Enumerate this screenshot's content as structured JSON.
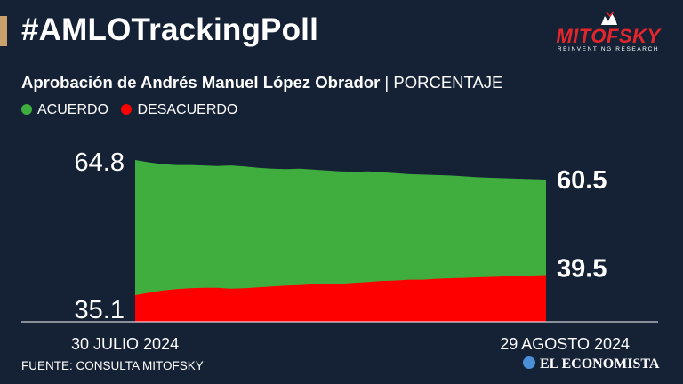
{
  "header": {
    "hashtag": "#AMLOTrackingPoll",
    "logo_word": "MITOFSKY",
    "logo_tagline": "REINVENTING RESEARCH"
  },
  "subtitle": {
    "main": "Aprobación de Andrés Manuel López Obrador",
    "separator": " | ",
    "unit": "PORCENTAJE"
  },
  "legend": {
    "acuerdo": "ACUERDO",
    "desacuerdo": "DESACUERDO"
  },
  "colors": {
    "background": "#152236",
    "acuerdo": "#3fae3f",
    "desacuerdo": "#ff0000",
    "accent": "#c9a26b",
    "logo_red": "#e3262b"
  },
  "footer": {
    "source": "FUENTE: CONSULTA MITOFSKY",
    "brand": "EL ECONOMISTA"
  },
  "chart_data": {
    "type": "area",
    "title": "Aprobación de Andrés Manuel López Obrador",
    "ylabel": "PORCENTAJE",
    "xlabel": "",
    "x_start_label": "30 JULIO 2024",
    "x_end_label": "29 AGOSTO 2024",
    "series": [
      {
        "name": "ACUERDO",
        "values": [
          64.8,
          64.3,
          63.9,
          63.7,
          63.7,
          63.6,
          63.5,
          63.6,
          63.4,
          63.1,
          62.9,
          62.8,
          62.9,
          62.7,
          62.5,
          62.3,
          62.2,
          62.3,
          62.1,
          61.9,
          61.7,
          61.6,
          61.5,
          61.4,
          61.2,
          61.0,
          60.9,
          60.8,
          60.7,
          60.6,
          60.5
        ]
      },
      {
        "name": "DESACUERDO",
        "values": [
          35.1,
          35.6,
          36.1,
          36.4,
          36.6,
          36.7,
          36.7,
          36.5,
          36.6,
          36.8,
          37.0,
          37.2,
          37.3,
          37.5,
          37.6,
          37.6,
          37.8,
          38.0,
          38.2,
          38.3,
          38.5,
          38.5,
          38.7,
          38.8,
          38.9,
          39.0,
          39.1,
          39.2,
          39.3,
          39.4,
          39.5
        ]
      }
    ],
    "labels": {
      "acuerdo_start": "64.8",
      "desacuerdo_start": "35.1",
      "acuerdo_end": "60.5",
      "desacuerdo_end": "39.5"
    },
    "ylim": [
      33,
      66
    ]
  }
}
